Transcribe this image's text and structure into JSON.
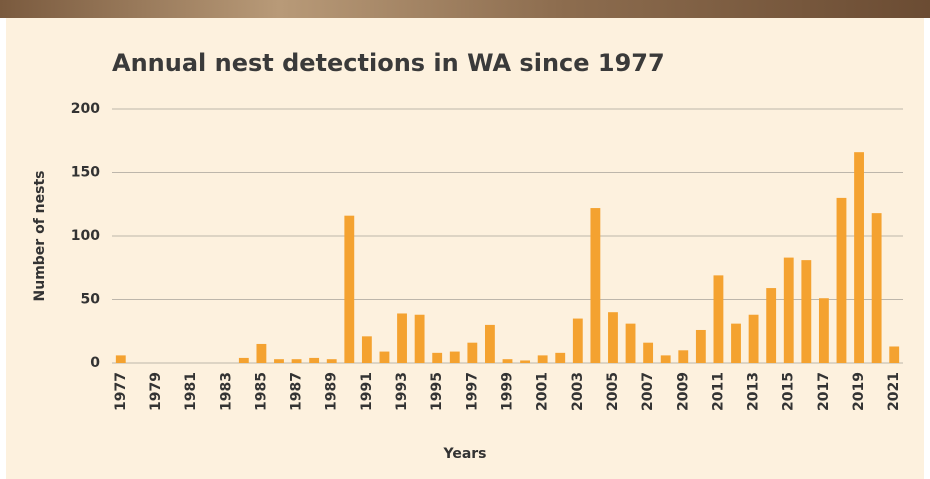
{
  "chart_data": {
    "type": "bar",
    "title": "Annual nest detections in WA since 1977",
    "x_label": "Years",
    "y_label": "Number of nests",
    "categories": [
      "1977",
      null,
      "1979",
      null,
      "1981",
      null,
      "1983",
      null,
      "1985",
      null,
      "1987",
      null,
      "1989",
      null,
      "1991",
      null,
      "1993",
      null,
      "1995",
      null,
      "1997",
      null,
      "1999",
      null,
      "2001",
      null,
      "2003",
      null,
      "2005",
      null,
      "2007",
      null,
      "2009",
      null,
      "2011",
      null,
      "2013",
      null,
      "2015",
      null,
      "2017",
      null,
      "2019",
      null,
      "2021"
    ],
    "values": [
      6,
      0,
      0,
      0,
      0,
      0,
      0,
      4,
      15,
      3,
      3,
      4,
      3,
      116,
      21,
      9,
      39,
      38,
      8,
      9,
      16,
      30,
      3,
      2,
      6,
      8,
      35,
      122,
      40,
      31,
      16,
      6,
      10,
      26,
      69,
      31,
      38,
      59,
      83,
      81,
      51,
      130,
      166,
      118,
      13
    ],
    "color": "#f4a230",
    "ylim": [
      0,
      200
    ],
    "yticks": [
      0,
      50,
      100,
      150,
      200
    ],
    "grid": true
  }
}
